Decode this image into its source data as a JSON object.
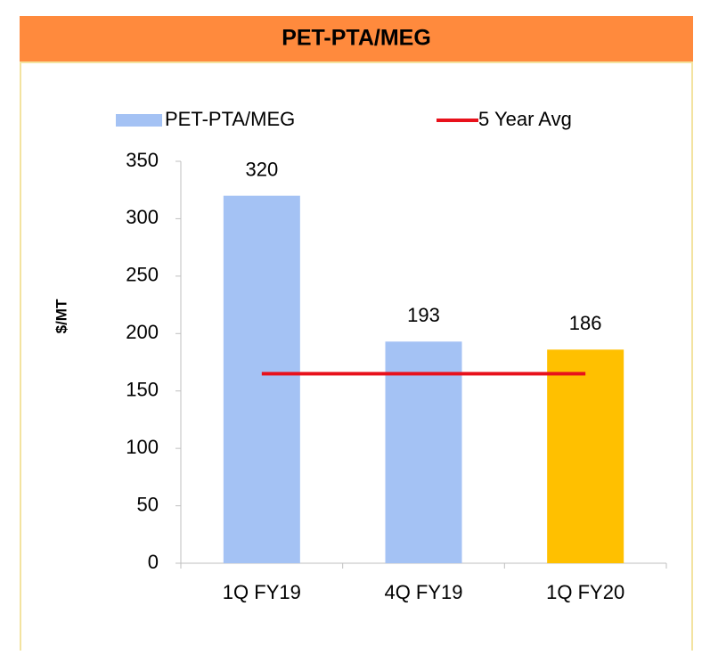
{
  "chart_data": {
    "type": "bar",
    "title": "PET-PTA/MEG",
    "y_label": "$/MT",
    "categories": [
      "1Q FY19",
      "4Q FY19",
      "1Q FY20"
    ],
    "series": [
      {
        "name": "PET-PTA/MEG",
        "color": "#a4c2f4",
        "colors": [
          "#a4c2f4",
          "#a4c2f4",
          "#ffc000"
        ],
        "values": [
          320,
          193,
          186
        ]
      },
      {
        "name": "5 Year Avg",
        "type": "line",
        "color": "#e8111b",
        "values": [
          165,
          165,
          165
        ]
      }
    ],
    "ylim": [
      0,
      350
    ],
    "yticks": [
      0,
      50,
      100,
      150,
      200,
      250,
      300,
      350
    ],
    "grid": false,
    "legend": "top"
  }
}
